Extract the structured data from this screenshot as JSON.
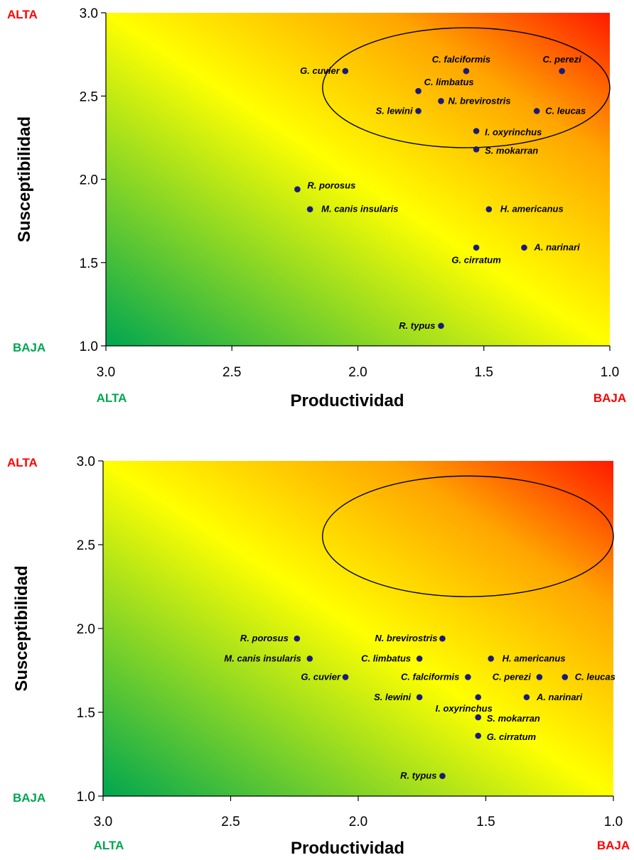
{
  "chart_data": [
    {
      "type": "scatter",
      "xlabel": "Productividad",
      "ylabel": "Susceptibilidad",
      "xlim": [
        3.0,
        1.0
      ],
      "ylim": [
        1.0,
        3.0
      ],
      "x_reversed": true,
      "xticks": [
        "3.0",
        "2.5",
        "2.0",
        "1.5",
        "1.0"
      ],
      "yticks": [
        "1.0",
        "1.5",
        "2.0",
        "2.5",
        "3.0"
      ],
      "corner_labels": {
        "x_low_end": "ALTA",
        "x_high_end": "BAJA",
        "y_top": "ALTA",
        "y_bottom": "BAJA"
      },
      "colors": {
        "high": "#ff1a00",
        "mid": "#ffff00",
        "low": "#00a651",
        "point": "#1a1a7a",
        "alta_red": "#ff0000",
        "baja_green": "#00a651"
      },
      "highlight_ellipse": {
        "center_x": 1.57,
        "center_y": 2.55,
        "radius_x": 0.57,
        "radius_y": 0.36
      },
      "points": [
        {
          "label": "G. cuvier",
          "x": 2.05,
          "y": 2.65
        },
        {
          "label": "C. falciformis",
          "x": 1.57,
          "y": 2.65
        },
        {
          "label": "C. perezi",
          "x": 1.19,
          "y": 2.65
        },
        {
          "label": "C. limbatus",
          "x": 1.76,
          "y": 2.53
        },
        {
          "label": "N. brevirostris",
          "x": 1.67,
          "y": 2.47
        },
        {
          "label": "S. lewini",
          "x": 1.76,
          "y": 2.41
        },
        {
          "label": "C. leucas",
          "x": 1.29,
          "y": 2.41
        },
        {
          "label": "I. oxyrinchus",
          "x": 1.53,
          "y": 2.29
        },
        {
          "label": "S. mokarran",
          "x": 1.53,
          "y": 2.18
        },
        {
          "label": "R. porosus",
          "x": 2.24,
          "y": 1.94
        },
        {
          "label": "M. canis insularis",
          "x": 2.19,
          "y": 1.82
        },
        {
          "label": "H. americanus",
          "x": 1.48,
          "y": 1.82
        },
        {
          "label": "G. cirratum",
          "x": 1.53,
          "y": 1.59
        },
        {
          "label": "A. narinari",
          "x": 1.34,
          "y": 1.59
        },
        {
          "label": "R. typus",
          "x": 1.67,
          "y": 1.12
        }
      ]
    },
    {
      "type": "scatter",
      "xlabel": "Productividad",
      "ylabel": "Susceptibilidad",
      "xlim": [
        3.0,
        1.0
      ],
      "ylim": [
        1.0,
        3.0
      ],
      "x_reversed": true,
      "xticks": [
        "3.0",
        "2.5",
        "2.0",
        "1.5",
        "1.0"
      ],
      "yticks": [
        "1.0",
        "1.5",
        "2.0",
        "2.5",
        "3.0"
      ],
      "corner_labels": {
        "x_low_end": "ALTA",
        "x_high_end": "BAJA",
        "y_top": "ALTA",
        "y_bottom": "BAJA"
      },
      "colors": {
        "high": "#ff1a00",
        "mid": "#ffff00",
        "low": "#00a651",
        "point": "#1a1a7a",
        "alta_red": "#ff0000",
        "baja_green": "#00a651"
      },
      "highlight_ellipse": {
        "center_x": 1.57,
        "center_y": 2.55,
        "radius_x": 0.57,
        "radius_y": 0.36
      },
      "points": [
        {
          "label": "R. porosus",
          "x": 2.24,
          "y": 1.94
        },
        {
          "label": "N. brevirostris",
          "x": 1.67,
          "y": 1.94
        },
        {
          "label": "M. canis insularis",
          "x": 2.19,
          "y": 1.82
        },
        {
          "label": "C. limbatus",
          "x": 1.76,
          "y": 1.82
        },
        {
          "label": "H. americanus",
          "x": 1.48,
          "y": 1.82
        },
        {
          "label": "G. cuvier",
          "x": 2.05,
          "y": 1.71
        },
        {
          "label": "C. falciformis",
          "x": 1.57,
          "y": 1.71
        },
        {
          "label": "C. perezi",
          "x": 1.29,
          "y": 1.71
        },
        {
          "label": "C. leucas",
          "x": 1.19,
          "y": 1.71
        },
        {
          "label": "S. lewini",
          "x": 1.76,
          "y": 1.59
        },
        {
          "label": "I. oxyrinchus",
          "x": 1.53,
          "y": 1.59
        },
        {
          "label": "A. narinari",
          "x": 1.34,
          "y": 1.59
        },
        {
          "label": "S. mokarran",
          "x": 1.53,
          "y": 1.47
        },
        {
          "label": "G. cirratum",
          "x": 1.53,
          "y": 1.36
        },
        {
          "label": "R. typus",
          "x": 1.67,
          "y": 1.12
        }
      ]
    }
  ]
}
